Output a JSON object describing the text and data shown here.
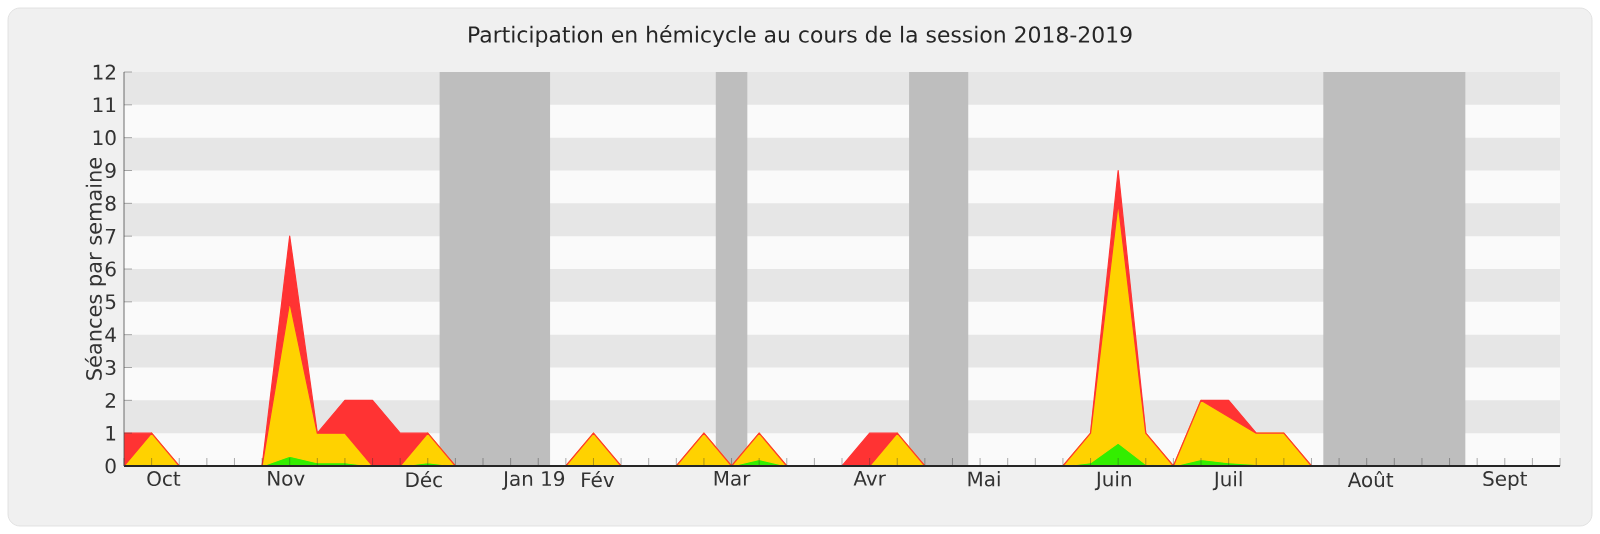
{
  "chart_data": {
    "type": "area",
    "stacked": true,
    "title": "Participation en hémicycle au cours de la session 2018-2019",
    "ylabel": "Séances par semaine",
    "x": [
      "2018-10-01",
      "2018-10-08",
      "2018-10-15",
      "2018-10-22",
      "2018-10-29",
      "2018-11-05",
      "2018-11-12",
      "2018-11-19",
      "2018-11-26",
      "2018-12-03",
      "2018-12-10",
      "2018-12-17",
      "2018-12-24",
      "2018-12-31",
      "2019-01-07",
      "2019-01-14",
      "2019-01-21",
      "2019-01-28",
      "2019-02-04",
      "2019-02-11",
      "2019-02-18",
      "2019-02-25",
      "2019-03-04",
      "2019-03-11",
      "2019-03-18",
      "2019-03-25",
      "2019-04-01",
      "2019-04-08",
      "2019-04-15",
      "2019-04-22",
      "2019-04-29",
      "2019-05-06",
      "2019-05-13",
      "2019-05-20",
      "2019-05-27",
      "2019-06-03",
      "2019-06-10",
      "2019-06-17",
      "2019-06-24",
      "2019-07-01",
      "2019-07-08",
      "2019-07-15",
      "2019-07-22",
      "2019-07-29",
      "2019-08-05",
      "2019-08-12",
      "2019-08-19",
      "2019-08-26",
      "2019-09-02",
      "2019-09-09",
      "2019-09-16",
      "2019-09-23",
      "2019-09-30"
    ],
    "xlim": [
      "2018-10-01",
      "2019-09-30"
    ],
    "ylim": [
      0,
      12
    ],
    "yticks": [
      0,
      1,
      2,
      3,
      4,
      5,
      6,
      7,
      8,
      9,
      10,
      11,
      12
    ],
    "xticks": [
      {
        "value": "2018-10-01",
        "label": null
      },
      {
        "value": "2018-10-08",
        "label": null
      },
      {
        "value": "2018-10-15",
        "label": null
      },
      {
        "value": "2018-10-22",
        "label": null
      },
      {
        "value": "2018-10-29",
        "label": null
      },
      {
        "value": "2018-11-05",
        "label": null
      },
      {
        "value": "2018-11-12",
        "label": null
      },
      {
        "value": "2018-11-19",
        "label": null
      },
      {
        "value": "2018-11-26",
        "label": null
      },
      {
        "value": "2018-12-03",
        "label": null
      },
      {
        "value": "2018-12-10",
        "label": null
      },
      {
        "value": "2018-12-17",
        "label": null
      },
      {
        "value": "2018-12-24",
        "label": null
      },
      {
        "value": "2018-12-31",
        "label": null
      },
      {
        "value": "2019-01-07",
        "label": null
      },
      {
        "value": "2019-01-14",
        "label": null
      },
      {
        "value": "2019-01-21",
        "label": null
      },
      {
        "value": "2019-01-28",
        "label": null
      },
      {
        "value": "2019-02-04",
        "label": null
      },
      {
        "value": "2019-02-11",
        "label": null
      },
      {
        "value": "2019-02-18",
        "label": null
      },
      {
        "value": "2019-02-25",
        "label": null
      },
      {
        "value": "2019-03-04",
        "label": null
      },
      {
        "value": "2019-03-11",
        "label": null
      },
      {
        "value": "2019-03-18",
        "label": null
      },
      {
        "value": "2019-03-25",
        "label": null
      },
      {
        "value": "2019-04-01",
        "label": null
      },
      {
        "value": "2019-04-08",
        "label": null
      },
      {
        "value": "2019-04-15",
        "label": null
      },
      {
        "value": "2019-04-22",
        "label": null
      },
      {
        "value": "2019-04-29",
        "label": null
      },
      {
        "value": "2019-05-06",
        "label": null
      },
      {
        "value": "2019-05-13",
        "label": null
      },
      {
        "value": "2019-05-20",
        "label": null
      },
      {
        "value": "2019-05-27",
        "label": null
      },
      {
        "value": "2019-06-03",
        "label": null
      },
      {
        "value": "2019-06-10",
        "label": null
      },
      {
        "value": "2019-06-17",
        "label": null
      },
      {
        "value": "2019-06-24",
        "label": null
      },
      {
        "value": "2019-07-01",
        "label": null
      },
      {
        "value": "2019-07-08",
        "label": null
      },
      {
        "value": "2019-07-15",
        "label": null
      },
      {
        "value": "2019-07-22",
        "label": null
      },
      {
        "value": "2019-07-29",
        "label": null
      },
      {
        "value": "2019-08-05",
        "label": null
      },
      {
        "value": "2019-08-12",
        "label": null
      },
      {
        "value": "2019-08-19",
        "label": null
      },
      {
        "value": "2019-08-26",
        "label": null
      },
      {
        "value": "2019-09-02",
        "label": null
      },
      {
        "value": "2019-09-09",
        "label": null
      },
      {
        "value": "2019-09-16",
        "label": null
      },
      {
        "value": "2019-09-23",
        "label": null
      },
      {
        "value": "2019-09-30",
        "label": null
      },
      {
        "value": "2018-10-11",
        "label": "Oct"
      },
      {
        "value": "2018-11-11",
        "label": "Nov"
      },
      {
        "value": "2018-12-16",
        "label": "Déc"
      },
      {
        "value": "2019-01-13",
        "label": "Jan 19"
      },
      {
        "value": "2019-01-29",
        "label": "Fév"
      },
      {
        "value": "2019-03-04",
        "label": "Mar"
      },
      {
        "value": "2019-04-08",
        "label": "Avr"
      },
      {
        "value": "2019-05-07",
        "label": "Mai"
      },
      {
        "value": "2019-06-09",
        "label": "Juin"
      },
      {
        "value": "2019-07-08",
        "label": "Juil"
      },
      {
        "value": "2019-08-13",
        "label": "Août"
      },
      {
        "value": "2019-09-16",
        "label": "Sept"
      }
    ],
    "bands": [
      {
        "axis": "y",
        "from": 1,
        "to": 2,
        "color": "#e6e6e6"
      },
      {
        "axis": "y",
        "from": 3,
        "to": 4,
        "color": "#e6e6e6"
      },
      {
        "axis": "y",
        "from": 5,
        "to": 6,
        "color": "#e6e6e6"
      },
      {
        "axis": "y",
        "from": 7,
        "to": 8,
        "color": "#e6e6e6"
      },
      {
        "axis": "y",
        "from": 9,
        "to": 10,
        "color": "#e6e6e6"
      },
      {
        "axis": "y",
        "from": 11,
        "to": 12,
        "color": "#e6e6e6"
      },
      {
        "axis": "x",
        "from": "2018-12-20",
        "to": "2019-01-17",
        "color": "#bebebe"
      },
      {
        "axis": "x",
        "from": "2019-02-28",
        "to": "2019-03-08",
        "color": "#bebebe"
      },
      {
        "axis": "x",
        "from": "2019-04-18",
        "to": "2019-05-03",
        "color": "#bebebe"
      },
      {
        "axis": "x",
        "from": "2019-08-01",
        "to": "2019-09-06",
        "color": "#bebebe"
      }
    ],
    "series": [
      {
        "color": "#33ee00",
        "values": [
          0,
          0.05,
          0,
          0,
          0,
          0,
          0.3,
          0.1,
          0.1,
          0,
          0,
          0.1,
          0,
          0,
          0,
          0,
          0,
          0,
          0,
          0,
          0,
          0.05,
          0,
          0.2,
          0,
          0,
          0,
          0,
          0.05,
          0,
          0,
          0,
          0,
          0,
          0,
          0.1,
          0.7,
          0.05,
          0,
          0.2,
          0.1,
          0.05,
          0.05,
          0,
          0,
          0,
          0,
          0,
          0,
          0,
          0,
          0,
          0
        ]
      },
      {
        "color": "#ffd200",
        "values": [
          0,
          0.95,
          0,
          0,
          0,
          0,
          4.7,
          0.9,
          0.9,
          0,
          0,
          0.9,
          0,
          0,
          0,
          0,
          0,
          1,
          0,
          0,
          0,
          0.95,
          0,
          0.8,
          0,
          0,
          0,
          0,
          0.95,
          0,
          0,
          0,
          0,
          0,
          0,
          0.9,
          7.3,
          0.95,
          0,
          1.8,
          1.4,
          0.95,
          0.95,
          0,
          0,
          0,
          0,
          0,
          0,
          0,
          0,
          0,
          0
        ]
      },
      {
        "color": "#ff3333",
        "values": [
          1,
          0,
          0,
          0,
          0,
          0,
          2,
          0,
          1,
          2,
          1,
          0,
          0,
          0,
          0,
          0,
          0,
          0,
          0,
          0,
          0,
          0,
          0,
          0,
          0,
          0,
          0,
          1,
          0,
          0,
          0,
          0,
          0,
          0,
          0,
          0,
          1,
          0,
          0,
          0,
          0.5,
          0,
          0,
          0,
          0,
          0,
          0,
          0,
          0,
          0,
          0,
          0,
          0
        ]
      }
    ]
  }
}
